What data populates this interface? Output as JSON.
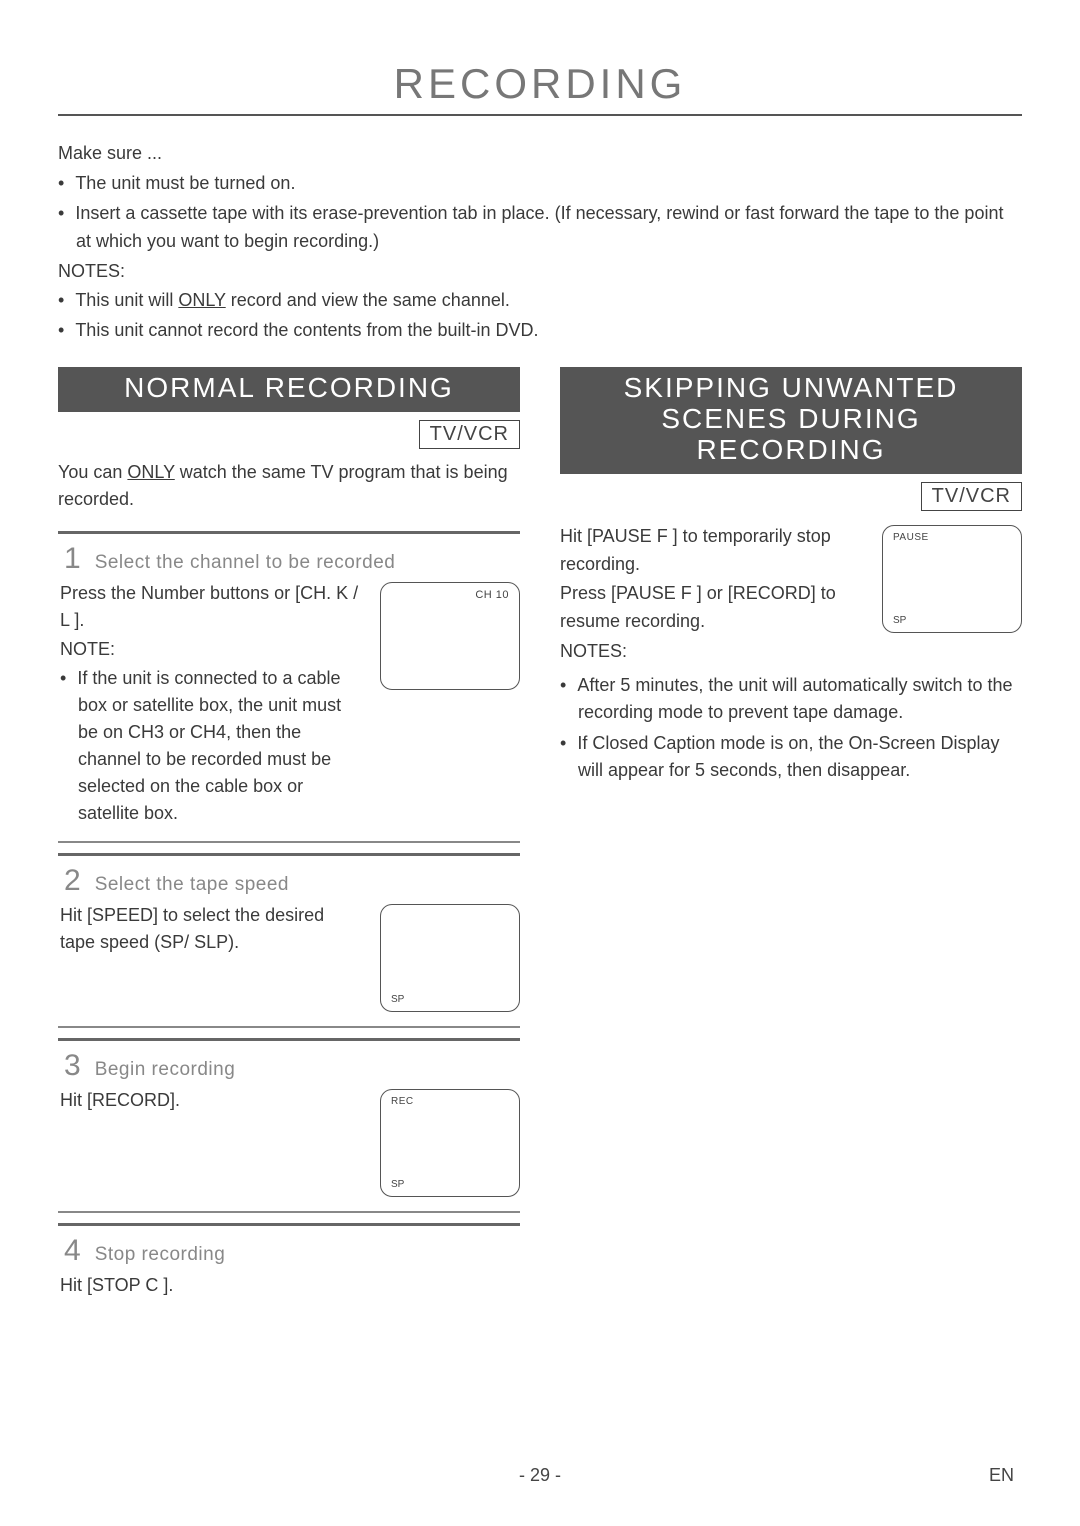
{
  "page": {
    "title": "RECORDING",
    "number": "- 29 -",
    "lang": "EN"
  },
  "intro": {
    "makeSure": "Make sure ...",
    "bullets": [
      "The unit must be turned on.",
      "Insert a cassette tape with its erase-prevention tab in place. (If necessary, rewind or fast forward the tape to the point at which you want to begin recording.)"
    ],
    "notesLabel": "NOTES:",
    "notes_pre": "This unit will ",
    "notes_only": "ONLY",
    "notes_post": " record and view the same channel.",
    "note2": "This unit cannot record the contents from the built-in DVD."
  },
  "left": {
    "header": "NORMAL RECORDING",
    "badge": "TV/VCR",
    "lead_pre": "You can ",
    "lead_only": "ONLY",
    "lead_post": " watch the same TV program that is being recorded.",
    "steps": [
      {
        "num": "1",
        "title": "Select the channel to be recorded",
        "body": "Press the Number buttons or [CH. K / L ].",
        "noteLabel": "NOTE:",
        "noteItem": "If the unit is connected to a cable box or satellite box, the unit must be on CH3 or CH4, then the channel to be recorded must be selected on the cable box or satellite box.",
        "tv": {
          "topRight": "CH 10"
        }
      },
      {
        "num": "2",
        "title": "Select the tape speed",
        "body": "Hit [SPEED] to select the desired tape speed (SP/ SLP).",
        "tv": {
          "bottomLeft": "SP"
        }
      },
      {
        "num": "3",
        "title": "Begin recording",
        "body": "Hit [RECORD].",
        "tv": {
          "topLeft": "REC",
          "bottomLeft": "SP"
        }
      },
      {
        "num": "4",
        "title": "Stop recording",
        "body": "Hit [STOP C ]."
      }
    ]
  },
  "right": {
    "header": "SKIPPING UNWANTED SCENES DURING RECORDING",
    "badge": "TV/VCR",
    "p1": "Hit [PAUSE F ] to temporarily stop recording.",
    "p2": "Press [PAUSE F ] or [RECORD] to resume recording.",
    "notesLabel": "NOTES:",
    "notes": [
      "After 5 minutes, the unit will automatically switch to the recording mode to prevent tape damage.",
      "If Closed Caption mode is on, the On-Screen Display will appear for 5 seconds, then disappear."
    ],
    "tv": {
      "topLeft": "PAUSE",
      "bottomLeft": "SP"
    }
  }
}
